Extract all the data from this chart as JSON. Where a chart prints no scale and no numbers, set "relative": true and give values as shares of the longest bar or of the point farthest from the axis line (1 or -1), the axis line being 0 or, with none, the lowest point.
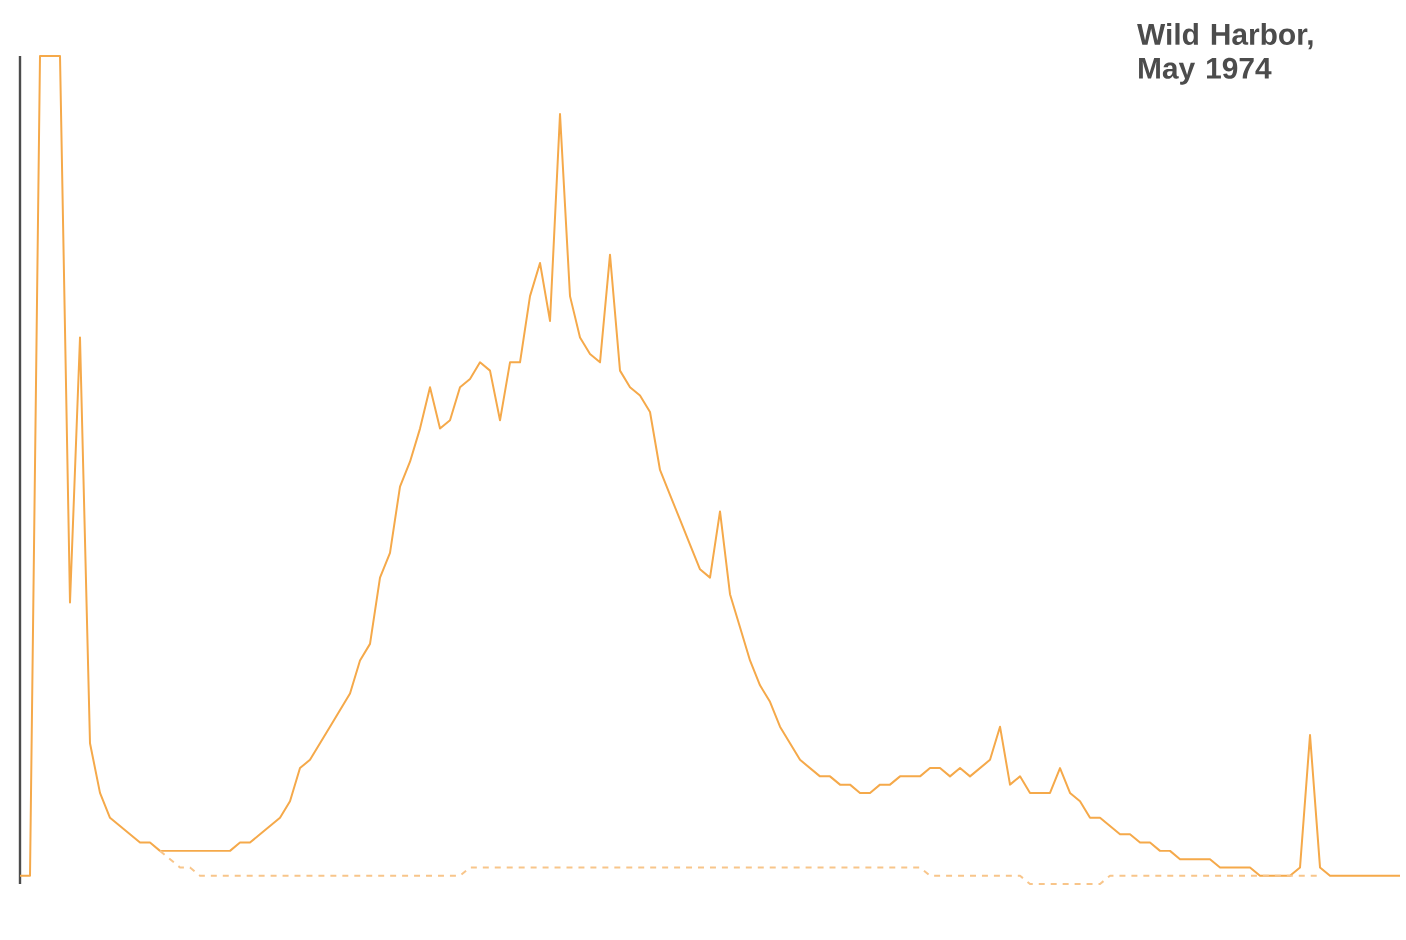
{
  "chart_data": {
    "type": "line",
    "title": "Wild Harbor, May 1974",
    "relative": true,
    "categories": [
      null,
      null,
      null,
      null,
      null,
      null,
      null,
      null,
      null,
      null,
      null,
      null,
      null,
      null,
      null,
      null,
      null,
      null,
      null,
      null,
      null,
      null,
      null,
      null,
      null,
      null,
      null,
      null,
      null,
      null,
      null,
      null,
      null,
      null,
      null,
      null,
      null,
      null,
      null,
      null,
      null,
      null,
      null,
      null,
      null,
      null,
      null,
      null,
      null,
      null,
      null,
      null,
      null,
      null,
      null,
      null,
      null,
      null,
      null,
      null,
      null,
      null,
      null,
      null,
      null,
      null,
      null,
      null,
      null,
      null,
      null,
      null,
      null,
      null,
      null,
      null,
      null,
      null,
      null,
      null,
      null,
      null,
      null,
      null,
      null,
      null,
      null,
      null,
      null,
      null,
      null,
      null,
      null,
      null,
      null,
      null,
      null,
      null,
      null,
      null,
      null,
      null,
      null,
      null,
      null,
      null,
      null,
      null,
      null,
      null,
      null,
      null,
      null,
      null,
      null,
      null,
      null,
      null,
      null,
      null,
      null,
      null,
      null,
      null,
      null,
      null,
      null,
      null,
      null,
      null,
      null,
      null,
      null,
      null,
      null,
      null,
      null,
      null,
      null
    ],
    "series": [
      {
        "color": "#f5a94a",
        "line_style": "solid",
        "values": [
          0.01,
          0.01,
          1.0,
          1.0,
          1.0,
          0.34,
          0.66,
          0.17,
          0.11,
          0.08,
          0.07,
          0.06,
          0.05,
          0.05,
          0.04,
          0.04,
          0.04,
          0.04,
          0.04,
          0.04,
          0.04,
          0.04,
          0.05,
          0.05,
          0.06,
          0.07,
          0.08,
          0.1,
          0.14,
          0.15,
          0.17,
          0.19,
          0.21,
          0.23,
          0.27,
          0.29,
          0.37,
          0.4,
          0.48,
          0.51,
          0.55,
          0.6,
          0.55,
          0.56,
          0.6,
          0.61,
          0.63,
          0.62,
          0.56,
          0.63,
          0.63,
          0.71,
          0.75,
          0.68,
          0.93,
          0.71,
          0.66,
          0.64,
          0.63,
          0.76,
          0.62,
          0.6,
          0.59,
          0.57,
          0.5,
          0.47,
          0.44,
          0.41,
          0.38,
          0.37,
          0.45,
          0.35,
          0.31,
          0.27,
          0.24,
          0.22,
          0.19,
          0.17,
          0.15,
          0.14,
          0.13,
          0.13,
          0.12,
          0.12,
          0.11,
          0.11,
          0.12,
          0.12,
          0.13,
          0.13,
          0.13,
          0.14,
          0.14,
          0.13,
          0.14,
          0.13,
          0.14,
          0.15,
          0.19,
          0.12,
          0.13,
          0.11,
          0.11,
          0.11,
          0.14,
          0.11,
          0.1,
          0.08,
          0.08,
          0.07,
          0.06,
          0.06,
          0.05,
          0.05,
          0.04,
          0.04,
          0.03,
          0.03,
          0.03,
          0.03,
          0.02,
          0.02,
          0.02,
          0.02,
          0.01,
          0.01,
          0.01,
          0.01,
          0.02,
          0.18,
          0.02,
          0.01,
          0.01,
          0.01,
          0.01,
          0.01,
          0.01,
          0.01,
          0.01
        ]
      },
      {
        "color": "#f8c58a",
        "line_style": "dashed",
        "values": [
          null,
          null,
          null,
          null,
          null,
          null,
          null,
          null,
          null,
          null,
          null,
          null,
          null,
          null,
          0.04,
          0.03,
          0.02,
          0.02,
          0.01,
          0.01,
          0.01,
          0.01,
          0.01,
          0.01,
          0.01,
          0.01,
          0.01,
          0.01,
          0.01,
          0.01,
          0.01,
          0.01,
          0.01,
          0.01,
          0.01,
          0.01,
          0.01,
          0.01,
          0.01,
          0.01,
          0.01,
          0.01,
          0.01,
          0.01,
          0.01,
          0.02,
          0.02,
          0.02,
          0.02,
          0.02,
          0.02,
          0.02,
          0.02,
          0.02,
          0.02,
          0.02,
          0.02,
          0.02,
          0.02,
          0.02,
          0.02,
          0.02,
          0.02,
          0.02,
          0.02,
          0.02,
          0.02,
          0.02,
          0.02,
          0.02,
          0.02,
          0.02,
          0.02,
          0.02,
          0.02,
          0.02,
          0.02,
          0.02,
          0.02,
          0.02,
          0.02,
          0.02,
          0.02,
          0.02,
          0.02,
          0.02,
          0.02,
          0.02,
          0.02,
          0.02,
          0.02,
          0.01,
          0.01,
          0.01,
          0.01,
          0.01,
          0.01,
          0.01,
          0.01,
          0.01,
          0.01,
          0.0,
          0.0,
          0.0,
          0.0,
          0.0,
          0.0,
          0.0,
          0.0,
          0.01,
          0.01,
          0.01,
          0.01,
          0.01,
          0.01,
          0.01,
          0.01,
          0.01,
          0.01,
          0.01,
          0.01,
          0.01,
          0.01,
          0.01,
          0.01,
          0.01,
          0.01,
          0.01,
          0.01,
          0.01,
          0.01,
          null,
          null,
          null,
          null,
          null,
          null,
          null,
          null
        ]
      }
    ]
  }
}
